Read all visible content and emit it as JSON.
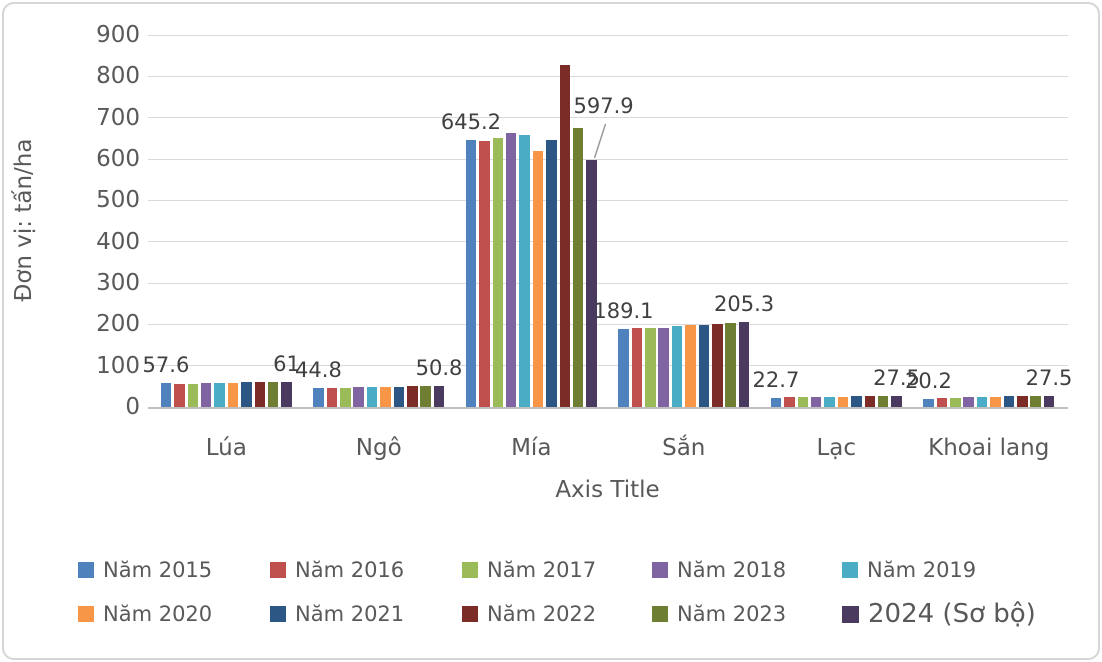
{
  "chart_data": {
    "type": "bar",
    "title": "",
    "xlabel": "Axis Title",
    "ylabel": "Đơn vị: tấn/ha",
    "ylim": [
      0,
      900
    ],
    "ytick_step": 100,
    "grid": true,
    "legend_position": "bottom",
    "grid_color": "#D9D9D9",
    "axis_text_color": "#595959",
    "data_label_color": "#404040",
    "categories": [
      "Lúa",
      "Ngô",
      "Mía",
      "Sắn",
      "Lạc",
      "Khoai lang"
    ],
    "series": [
      {
        "name": "Năm 2015",
        "color": "#4F81BD",
        "values": [
          57.6,
          44.8,
          645.2,
          189.1,
          22.7,
          20.2
        ]
      },
      {
        "name": "Năm 2016",
        "color": "#C0504D",
        "values": [
          56.5,
          45.5,
          643.0,
          191.0,
          23.0,
          21.3
        ]
      },
      {
        "name": "Năm 2017",
        "color": "#9BBB59",
        "values": [
          56.0,
          46.3,
          651.0,
          191.5,
          23.5,
          22.3
        ]
      },
      {
        "name": "Năm 2018",
        "color": "#8064A2",
        "values": [
          58.1,
          47.2,
          664.0,
          192.0,
          24.3,
          23.5
        ]
      },
      {
        "name": "Năm 2019",
        "color": "#4BACC6",
        "values": [
          58.2,
          47.8,
          657.0,
          195.0,
          24.8,
          24.2
        ]
      },
      {
        "name": "Năm 2020",
        "color": "#F79646",
        "values": [
          58.8,
          48.2,
          620.0,
          197.5,
          25.2,
          25.0
        ]
      },
      {
        "name": "Năm 2021",
        "color": "#2C5784",
        "values": [
          60.4,
          49.2,
          647.0,
          199.5,
          25.8,
          25.6
        ]
      },
      {
        "name": "Năm 2022",
        "color": "#7B2C27",
        "values": [
          60.0,
          49.6,
          828.0,
          200.5,
          26.3,
          26.2
        ]
      },
      {
        "name": "Năm 2023",
        "color": "#6E7F33",
        "values": [
          60.9,
          50.3,
          674.0,
          203.0,
          27.0,
          27.0
        ]
      },
      {
        "name": "2024 (Sơ bộ)",
        "color": "#4B3A5F",
        "emphasis": true,
        "values": [
          61.0,
          50.8,
          597.9,
          205.3,
          27.5,
          27.5
        ]
      }
    ],
    "data_labels": [
      {
        "category": 0,
        "series": 0,
        "text": "57.6"
      },
      {
        "category": 0,
        "series": 9,
        "text": "61"
      },
      {
        "category": 1,
        "series": 0,
        "text": "44.8"
      },
      {
        "category": 1,
        "series": 9,
        "text": "50.8"
      },
      {
        "category": 2,
        "series": 0,
        "text": "645.2"
      },
      {
        "category": 2,
        "series": 9,
        "text": "597.9",
        "dx": 12,
        "dy": -36,
        "leader": true
      },
      {
        "category": 3,
        "series": 0,
        "text": "189.1"
      },
      {
        "category": 3,
        "series": 9,
        "text": "205.3"
      },
      {
        "category": 4,
        "series": 0,
        "text": "22.7"
      },
      {
        "category": 4,
        "series": 9,
        "text": "27.5"
      },
      {
        "category": 5,
        "series": 0,
        "text": "20.2"
      },
      {
        "category": 5,
        "series": 9,
        "text": "27.5"
      }
    ]
  }
}
